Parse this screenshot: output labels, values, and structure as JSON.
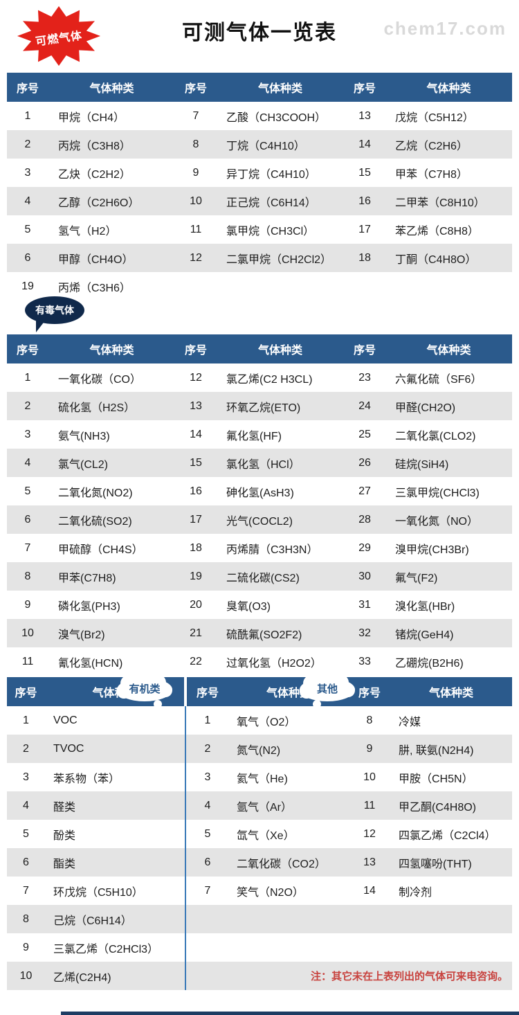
{
  "title": "可测气体一览表",
  "watermark": "chem17.com",
  "note": "注：其它未在上表列出的气体可来电咨询。",
  "labels": {
    "index": "序号",
    "type": "气体种类"
  },
  "badges": {
    "combustible": "可燃气体",
    "toxic": "有毒气体",
    "organic": "有机类",
    "other": "其他"
  },
  "colors": {
    "header_blue": "#2b5a8c",
    "stripe_gray": "#e4e4e4",
    "badge_red": "#e3221a",
    "badge_navy": "#10294b",
    "note_red": "#c8423e",
    "divider_blue": "#3a7ab8",
    "footer_navy": "#1d3c63",
    "watermark_gray": "#d9d9d9"
  },
  "combustible_rows": [
    [
      [
        "1",
        "甲烷（CH4）"
      ],
      [
        "7",
        "乙酸（CH3COOH）"
      ],
      [
        "13",
        "戊烷（C5H12）"
      ]
    ],
    [
      [
        "2",
        "丙烷（C3H8）"
      ],
      [
        "8",
        "丁烷（C4H10）"
      ],
      [
        "14",
        "乙烷（C2H6）"
      ]
    ],
    [
      [
        "3",
        "乙炔（C2H2）"
      ],
      [
        "9",
        "异丁烷（C4H10）"
      ],
      [
        "15",
        "甲苯（C7H8）"
      ]
    ],
    [
      [
        "4",
        "乙醇（C2H6O）"
      ],
      [
        "10",
        "正己烷（C6H14）"
      ],
      [
        "16",
        "二甲苯（C8H10）"
      ]
    ],
    [
      [
        "5",
        "氢气（H2）"
      ],
      [
        "11",
        "氯甲烷（CH3Cl）"
      ],
      [
        "17",
        "苯乙烯（C8H8）"
      ]
    ],
    [
      [
        "6",
        "甲醇（CH4O）"
      ],
      [
        "12",
        "二氯甲烷（CH2Cl2）"
      ],
      [
        "18",
        "丁酮（C4H8O）"
      ]
    ],
    [
      [
        "19",
        "丙烯（C3H6）"
      ],
      null,
      null
    ]
  ],
  "toxic_rows": [
    [
      [
        "1",
        "一氧化碳（CO）"
      ],
      [
        "12",
        "氯乙烯(C2 H3CL)"
      ],
      [
        "23",
        "六氟化硫（SF6）"
      ]
    ],
    [
      [
        "2",
        "硫化氢（H2S）"
      ],
      [
        "13",
        "环氧乙烷(ETO)"
      ],
      [
        "24",
        "甲醛(CH2O)"
      ]
    ],
    [
      [
        "3",
        "氨气(NH3)"
      ],
      [
        "14",
        "氟化氢(HF)"
      ],
      [
        "25",
        "二氧化氯(CLO2)"
      ]
    ],
    [
      [
        "4",
        "氯气(CL2)"
      ],
      [
        "15",
        "氯化氢（HCl）"
      ],
      [
        "26",
        "硅烷(SiH4)"
      ]
    ],
    [
      [
        "5",
        "二氧化氮(NO2)"
      ],
      [
        "16",
        "砷化氢(AsH3)"
      ],
      [
        "27",
        "三氯甲烷(CHCl3)"
      ]
    ],
    [
      [
        "6",
        "二氧化硫(SO2)"
      ],
      [
        "17",
        "光气(COCL2)"
      ],
      [
        "28",
        "一氧化氮（NO）"
      ]
    ],
    [
      [
        "7",
        "甲硫醇（CH4S）"
      ],
      [
        "18",
        "丙烯腈（C3H3N）"
      ],
      [
        "29",
        "溴甲烷(CH3Br)"
      ]
    ],
    [
      [
        "8",
        "甲苯(C7H8)"
      ],
      [
        "19",
        "二硫化碳(CS2)"
      ],
      [
        "30",
        "氟气(F2)"
      ]
    ],
    [
      [
        "9",
        "磷化氢(PH3)"
      ],
      [
        "20",
        "臭氧(O3)"
      ],
      [
        "31",
        "溴化氢(HBr)"
      ]
    ],
    [
      [
        "10",
        "溴气(Br2)"
      ],
      [
        "21",
        "硫酰氟(SO2F2)"
      ],
      [
        "32",
        "锗烷(GeH4)"
      ]
    ],
    [
      [
        "11",
        "氰化氢(HCN)"
      ],
      [
        "22",
        "过氧化氢（H2O2）"
      ],
      [
        "33",
        "乙硼烷(B2H6)"
      ]
    ]
  ],
  "bottom_rows": [
    [
      [
        "1",
        "VOC"
      ],
      [
        "1",
        "氧气（O2）"
      ],
      [
        "8",
        "冷媒"
      ]
    ],
    [
      [
        "2",
        "TVOC"
      ],
      [
        "2",
        "氮气(N2)"
      ],
      [
        "9",
        "肼, 联氨(N2H4)"
      ]
    ],
    [
      [
        "3",
        "苯系物（苯）"
      ],
      [
        "3",
        "氦气（He)"
      ],
      [
        "10",
        "甲胺（CH5N）"
      ]
    ],
    [
      [
        "4",
        "醛类"
      ],
      [
        "4",
        "氩气（Ar）"
      ],
      [
        "11",
        "甲乙酮(C4H8O)"
      ]
    ],
    [
      [
        "5",
        "酚类"
      ],
      [
        "5",
        "氙气（Xe）"
      ],
      [
        "12",
        "四氯乙烯（C2Cl4）"
      ]
    ],
    [
      [
        "6",
        "酯类"
      ],
      [
        "6",
        "二氧化碳（CO2）"
      ],
      [
        "13",
        "四氢噻吩(THT)"
      ]
    ],
    [
      [
        "7",
        "环戊烷（C5H10）"
      ],
      [
        "7",
        "笑气（N2O）"
      ],
      [
        "14",
        "制冷剂"
      ]
    ],
    [
      [
        "8",
        "己烷（C6H14）"
      ],
      null,
      null
    ],
    [
      [
        "9",
        "三氯乙烯（C2HCl3）"
      ],
      null,
      null
    ],
    [
      [
        "10",
        "乙烯(C2H4)"
      ],
      null,
      "NOTE"
    ]
  ]
}
